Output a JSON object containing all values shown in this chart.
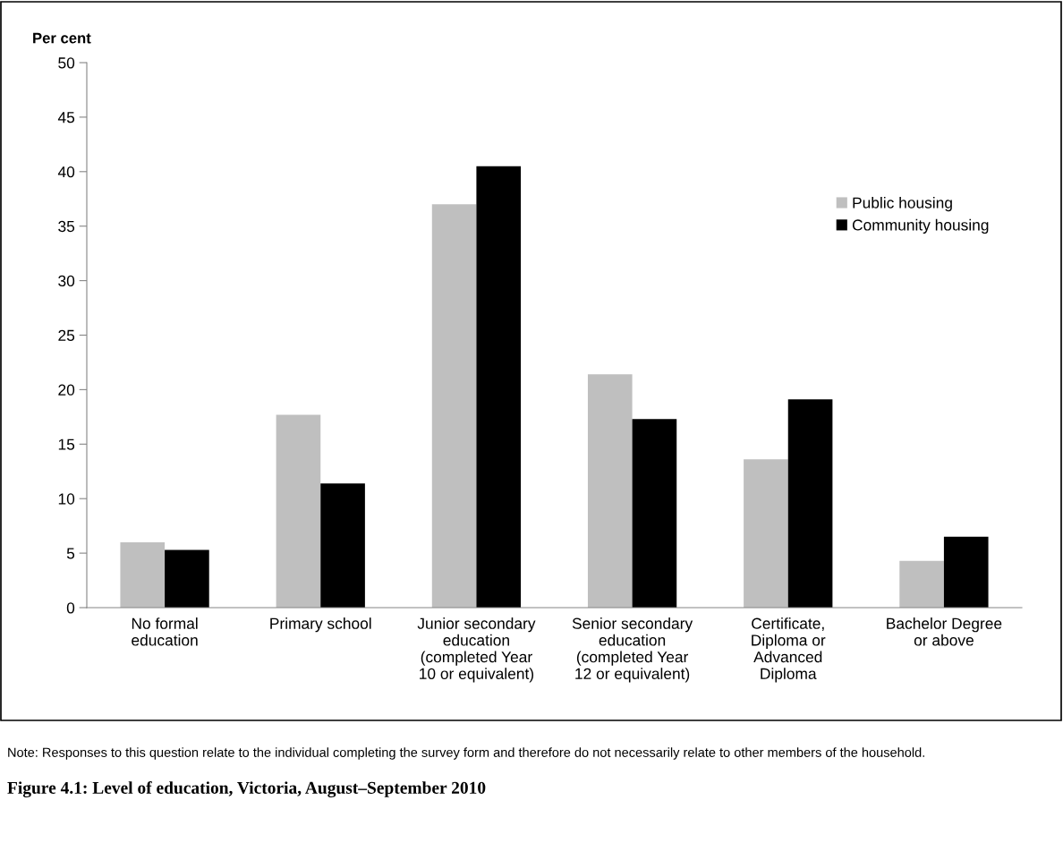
{
  "chart_data": {
    "type": "bar",
    "title": "Figure 4.1: Level of education, Victoria, August–September 2010",
    "ylabel": "Per cent",
    "categories": [
      "No formal\neducation",
      "Primary school",
      "Junior secondary\neducation\n(completed Year\n10 or equivalent)",
      "Senior secondary\neducation\n(completed Year\n12 or equivalent)",
      "Certificate,\nDiploma or\nAdvanced\nDiploma",
      "Bachelor Degree\nor above"
    ],
    "series": [
      {
        "name": "Public housing",
        "color": "#bfbfbf",
        "values": [
          6.0,
          17.7,
          37.0,
          21.4,
          13.6,
          4.3
        ]
      },
      {
        "name": "Community housing",
        "color": "#000000",
        "values": [
          5.3,
          11.4,
          40.5,
          17.3,
          19.1,
          6.5
        ]
      }
    ],
    "ylim": [
      0,
      50
    ],
    "yticks": [
      0,
      5,
      10,
      15,
      20,
      25,
      30,
      35,
      40,
      45,
      50
    ],
    "grid": false,
    "legend": "right",
    "annotations": [
      "Note: Responses to this question relate to the individual completing the survey form and therefore do not necessarily relate to other members of the household."
    ]
  }
}
